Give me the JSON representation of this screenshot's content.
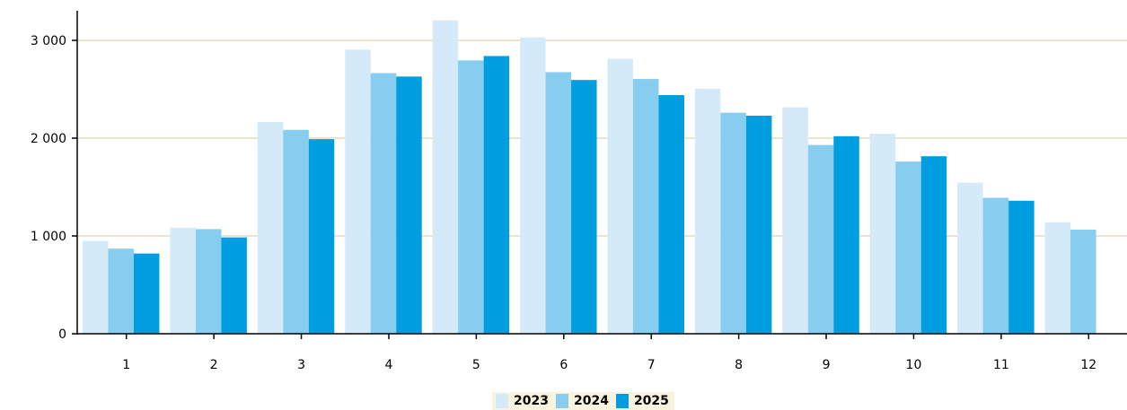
{
  "chart_data": {
    "type": "bar",
    "title": "",
    "xlabel": "",
    "ylabel": "",
    "categories": [
      "1",
      "2",
      "3",
      "4",
      "5",
      "6",
      "7",
      "8",
      "9",
      "10",
      "11",
      "12"
    ],
    "ylim": [
      0,
      3250
    ],
    "yticks": [
      0,
      1000,
      2000,
      3000
    ],
    "ytick_labels": [
      "0",
      "1 000",
      "2 000",
      "3 000"
    ],
    "grid": true,
    "legend_position": "bottom-center",
    "series": [
      {
        "name": "2023",
        "color": "#d4eaf9",
        "values": [
          950,
          1085,
          2165,
          2905,
          3205,
          3030,
          2810,
          2505,
          2315,
          2045,
          1545,
          1140
        ]
      },
      {
        "name": "2024",
        "color": "#86cdef",
        "values": [
          870,
          1070,
          2085,
          2665,
          2795,
          2675,
          2605,
          2260,
          1930,
          1760,
          1390,
          1065
        ]
      },
      {
        "name": "2025",
        "color": "#009ee0",
        "values": [
          820,
          985,
          1990,
          2630,
          2840,
          2595,
          2440,
          2230,
          2020,
          1815,
          1360,
          null
        ]
      }
    ]
  }
}
